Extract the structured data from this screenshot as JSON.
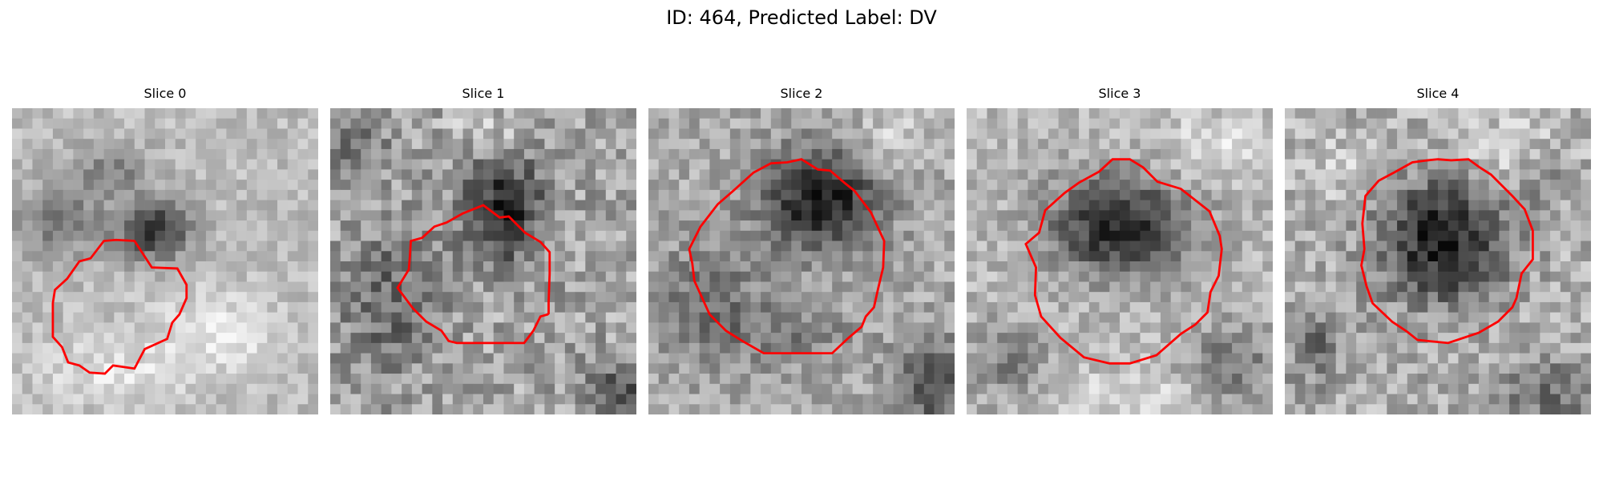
{
  "figure": {
    "title": "ID: 464, Predicted Label: DV"
  },
  "panels": [
    {
      "title": "Slice 0",
      "grayscale_patch": "scan patch 0 (dark lesion center)",
      "contour_color": "#ff0000"
    },
    {
      "title": "Slice 1",
      "grayscale_patch": "scan patch 1",
      "contour_color": "#ff0000"
    },
    {
      "title": "Slice 2",
      "grayscale_patch": "scan patch 2",
      "contour_color": "#ff0000"
    },
    {
      "title": "Slice 3",
      "grayscale_patch": "scan patch 3",
      "contour_color": "#ff0000"
    },
    {
      "title": "Slice 4",
      "grayscale_patch": "scan patch 4",
      "contour_color": "#ff0000"
    }
  ]
}
